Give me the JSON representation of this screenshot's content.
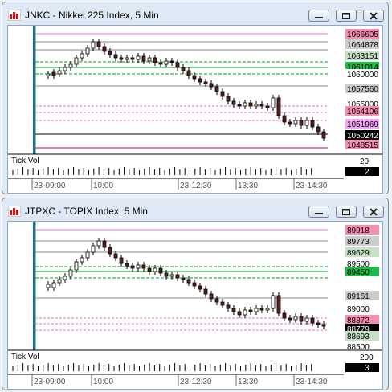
{
  "windows": [
    {
      "title": "JNKC - Nikkei 225 Index, 5 Min",
      "price_labels": [
        {
          "text": "1066605",
          "bg": "#f48fb1",
          "color": "#000000"
        },
        {
          "text": "1064878",
          "bg": "#cccccc",
          "color": "#000000"
        },
        {
          "text": "1063151",
          "bg": "#c6e0c6",
          "color": "#000000"
        },
        {
          "text": "1061014",
          "bg": "#22b84a",
          "color": "#000000"
        },
        {
          "text": "1060000",
          "bg": "#ffffff",
          "color": "#000000"
        },
        {
          "text": "1057560",
          "bg": "#cccccc",
          "color": "#000000"
        },
        {
          "text": "1055000",
          "bg": "#ffffff",
          "color": "#000000"
        },
        {
          "text": "1054106",
          "bg": "#f48fb1",
          "color": "#000000"
        },
        {
          "text": "1051969",
          "bg": "#f4a6f4",
          "color": "#000000"
        },
        {
          "text": "1050242",
          "bg": "#000000",
          "color": "#ffffff"
        },
        {
          "text": "1048515",
          "bg": "#f48fb1",
          "color": "#000000"
        }
      ],
      "volume": {
        "label": "Tick Vol",
        "scale": "20",
        "value": "2"
      },
      "time_labels": [
        "23-09:00",
        "10:00",
        "23-12:30",
        "13:30",
        "23-14:30"
      ]
    },
    {
      "title": "JTPXC - TOPIX Index, 5 Min",
      "price_labels": [
        {
          "text": "89918",
          "bg": "#f48fb1",
          "color": "#000000"
        },
        {
          "text": "89773",
          "bg": "#cccccc",
          "color": "#000000"
        },
        {
          "text": "89629",
          "bg": "#c6e0c6",
          "color": "#000000"
        },
        {
          "text": "89500",
          "bg": "#ffffff",
          "color": "#000000"
        },
        {
          "text": "89450",
          "bg": "#22b84a",
          "color": "#000000"
        },
        {
          "text": "89161",
          "bg": "#cccccc",
          "color": "#000000"
        },
        {
          "text": "89000",
          "bg": "#ffffff",
          "color": "#000000"
        },
        {
          "text": "88872",
          "bg": "#f48fb1",
          "color": "#000000"
        },
        {
          "text": "88779",
          "bg": "#000000",
          "color": "#ffffff"
        },
        {
          "text": "88693",
          "bg": "#c6e0c6",
          "color": "#000000"
        },
        {
          "text": "88500",
          "bg": "#ffffff",
          "color": "#000000"
        }
      ],
      "volume": {
        "label": "Tick Vol",
        "scale": "200",
        "value": "3"
      },
      "time_labels": [
        "23-09:00",
        "10:00",
        "23-12:30",
        "13:30",
        "23-14:30"
      ]
    }
  ],
  "colors": {
    "bull_candle": "#ffffff",
    "bear_candle": "#5a2020",
    "green_level": "#00a020",
    "pink_level": "#ff66cc",
    "gray_level": "#888888",
    "red_level": "#cc0044"
  }
}
